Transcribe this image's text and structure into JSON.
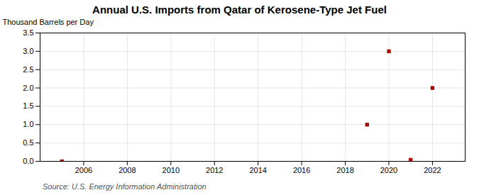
{
  "chart_data": {
    "type": "scatter",
    "title": "Annual U.S. Imports from Qatar of Kerosene-Type Jet Fuel",
    "ylabel": "Thousand Barrels per Day",
    "source": "Source: U.S. Energy Information Administration",
    "x": [
      2005,
      2019,
      2020,
      2021,
      2022
    ],
    "values": [
      0.0,
      1.0,
      3.0,
      0.04,
      2.0
    ],
    "color": "#aa0000",
    "marker": "square",
    "xlim": [
      2004.0,
      2023.5
    ],
    "xticks": [
      2006,
      2008,
      2010,
      2012,
      2014,
      2016,
      2018,
      2020,
      2022
    ],
    "ylim": [
      0.0,
      3.5
    ],
    "yticks": [
      {
        "value": 0.0,
        "label": "0.0"
      },
      0.5,
      {
        "value": 1.0,
        "label": "1.0"
      },
      1.5,
      {
        "value": 2.0,
        "label": "2.0"
      },
      2.5,
      {
        "value": 3.0,
        "label": "3.0"
      },
      3.5
    ],
    "grid": true
  }
}
